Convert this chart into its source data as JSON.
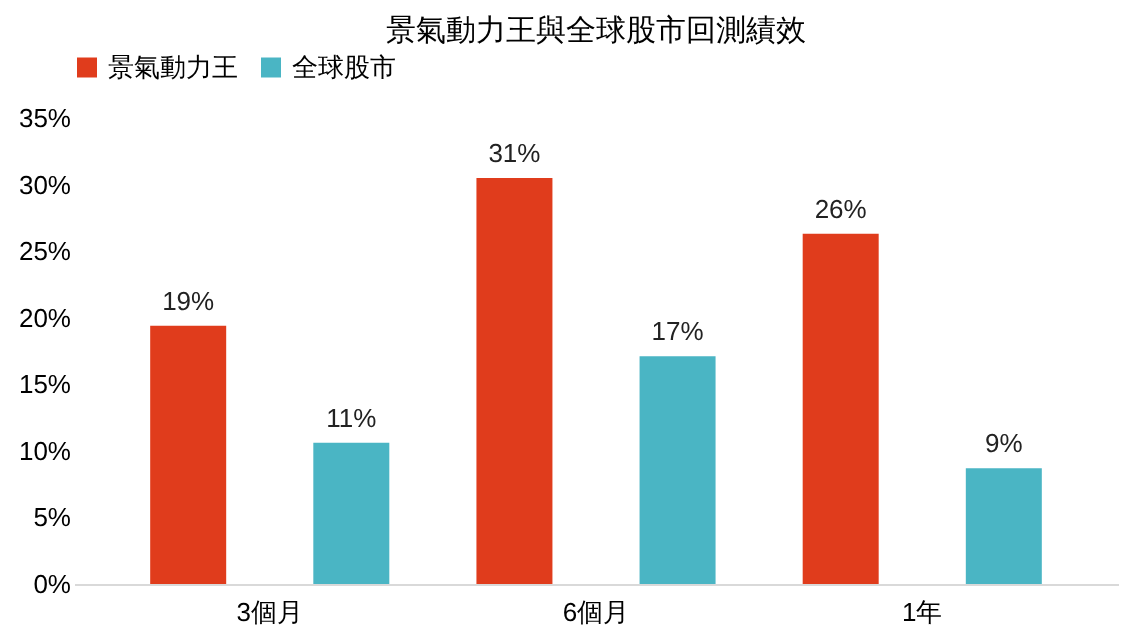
{
  "chart_data": {
    "type": "bar",
    "title": "景氣動力王與全球股市回測績效",
    "categories": [
      "3個月",
      "6個月",
      "1年"
    ],
    "series": [
      {
        "name": "景氣動力王",
        "color": "#e03c1c",
        "values": [
          19.4,
          30.5,
          26.3
        ],
        "value_labels": [
          "19%",
          "31%",
          "26%"
        ]
      },
      {
        "name": "全球股市",
        "color": "#4ab5c4",
        "values": [
          10.6,
          17.1,
          8.7
        ],
        "value_labels": [
          "11%",
          "17%",
          "9%"
        ]
      }
    ],
    "ylim": [
      0,
      35
    ],
    "yticks": [
      {
        "value": 0,
        "label": "0%"
      },
      {
        "value": 5,
        "label": "5%"
      },
      {
        "value": 10,
        "label": "10%"
      },
      {
        "value": 15,
        "label": "15%"
      },
      {
        "value": 20,
        "label": "20%"
      },
      {
        "value": 25,
        "label": "25%"
      },
      {
        "value": 30,
        "label": "30%"
      },
      {
        "value": 35,
        "label": "35%"
      }
    ],
    "grid": false,
    "legend": "top"
  }
}
